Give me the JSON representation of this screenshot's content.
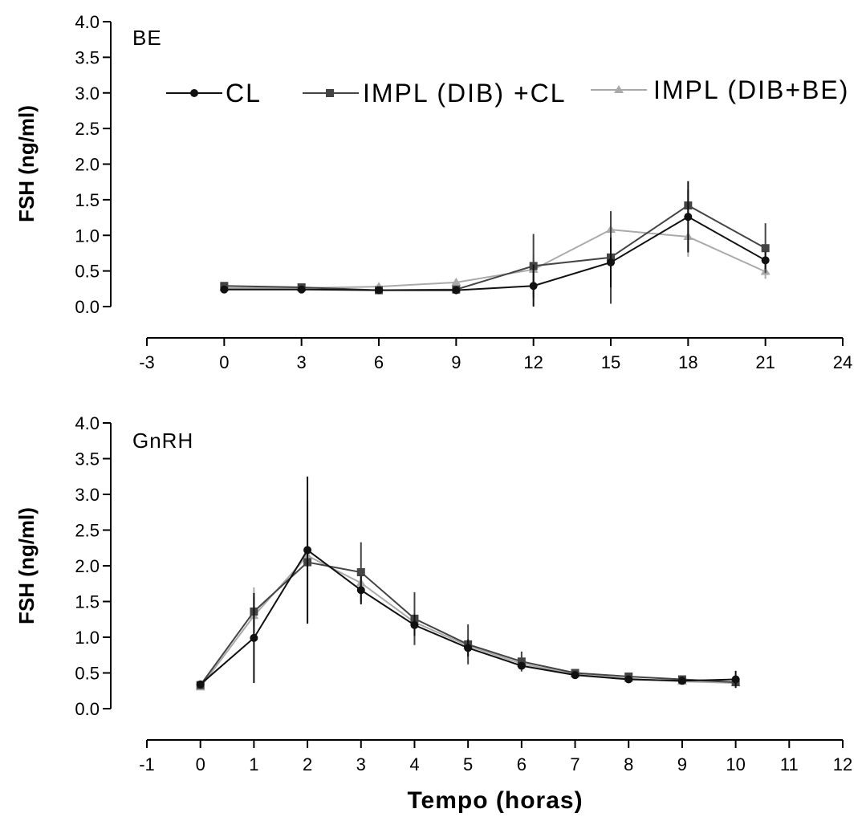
{
  "chart_data": [
    {
      "type": "line",
      "title": "",
      "panel_label": "BE",
      "xlabel": "",
      "ylabel": "FSH (ng/ml)",
      "xlim": [
        -3,
        24
      ],
      "ylim": [
        0.0,
        4.0
      ],
      "x_ticks": [
        -3,
        0,
        3,
        6,
        9,
        12,
        15,
        18,
        21,
        24
      ],
      "y_ticks": [
        "0.0",
        "0.5",
        "1.0",
        "1.5",
        "2.0",
        "2.5",
        "3.0",
        "3.5",
        "4.0"
      ],
      "x": [
        0,
        3,
        6,
        9,
        12,
        15,
        18,
        21
      ],
      "legend_position": "top",
      "series": [
        {
          "name": "CL",
          "marker": "circle",
          "color": "#111111",
          "values": [
            0.24,
            0.24,
            0.23,
            0.23,
            0.29,
            0.62,
            1.26,
            0.65
          ],
          "errors": [
            0.02,
            0.02,
            0.02,
            0.02,
            0.3,
            0.35,
            0.5,
            0.12
          ]
        },
        {
          "name": "IMPL (DIB) +CL",
          "marker": "square",
          "color": "#444444",
          "values": [
            0.29,
            0.27,
            0.23,
            0.24,
            0.57,
            0.69,
            1.42,
            0.82
          ],
          "errors": [
            0.02,
            0.02,
            0.03,
            0.03,
            0.45,
            0.65,
            0.22,
            0.35
          ]
        },
        {
          "name": "IMPL (DIB+BE)",
          "marker": "triangle",
          "color": "#aaaaaa",
          "values": [
            0.26,
            0.26,
            0.28,
            0.34,
            0.52,
            1.08,
            0.98,
            0.49
          ],
          "errors": [
            0.02,
            0.02,
            0.03,
            0.03,
            0.2,
            0.25,
            0.28,
            0.1
          ]
        }
      ]
    },
    {
      "type": "line",
      "title": "",
      "panel_label": "GnRH",
      "xlabel": "Tempo (horas)",
      "ylabel": "FSH (ng/ml)",
      "xlim": [
        -1,
        12
      ],
      "ylim": [
        0.0,
        4.0
      ],
      "x_ticks": [
        -1,
        0,
        1,
        2,
        3,
        4,
        5,
        6,
        7,
        8,
        9,
        10,
        11,
        12
      ],
      "y_ticks": [
        "0.0",
        "0.5",
        "1.0",
        "1.5",
        "2.0",
        "2.5",
        "3.0",
        "3.5",
        "4.0"
      ],
      "x": [
        0,
        1,
        2,
        3,
        4,
        5,
        6,
        7,
        8,
        9,
        10
      ],
      "series": [
        {
          "name": "CL",
          "marker": "circle",
          "color": "#111111",
          "values": [
            0.34,
            0.99,
            2.22,
            1.66,
            1.17,
            0.85,
            0.6,
            0.47,
            0.41,
            0.39,
            0.41
          ],
          "errors": [
            0.03,
            0.63,
            1.03,
            0.2,
            0.15,
            0.12,
            0.05,
            0.04,
            0.04,
            0.04,
            0.12
          ]
        },
        {
          "name": "IMPL (DIB) +CL",
          "marker": "square",
          "color": "#444444",
          "values": [
            0.33,
            1.36,
            2.05,
            1.91,
            1.26,
            0.9,
            0.66,
            0.5,
            0.45,
            0.41,
            0.37
          ],
          "errors": [
            0.03,
            0.2,
            0.85,
            0.42,
            0.37,
            0.28,
            0.14,
            0.05,
            0.04,
            0.05,
            0.04
          ]
        },
        {
          "name": "IMPL (DIB+BE)",
          "marker": "triangle",
          "color": "#aaaaaa",
          "values": [
            0.3,
            1.3,
            2.14,
            1.76,
            1.21,
            0.88,
            0.63,
            0.48,
            0.42,
            0.38,
            0.36
          ],
          "errors": [
            0.03,
            0.4,
            0.1,
            0.1,
            0.1,
            0.08,
            0.05,
            0.04,
            0.04,
            0.04,
            0.04
          ]
        }
      ]
    }
  ]
}
